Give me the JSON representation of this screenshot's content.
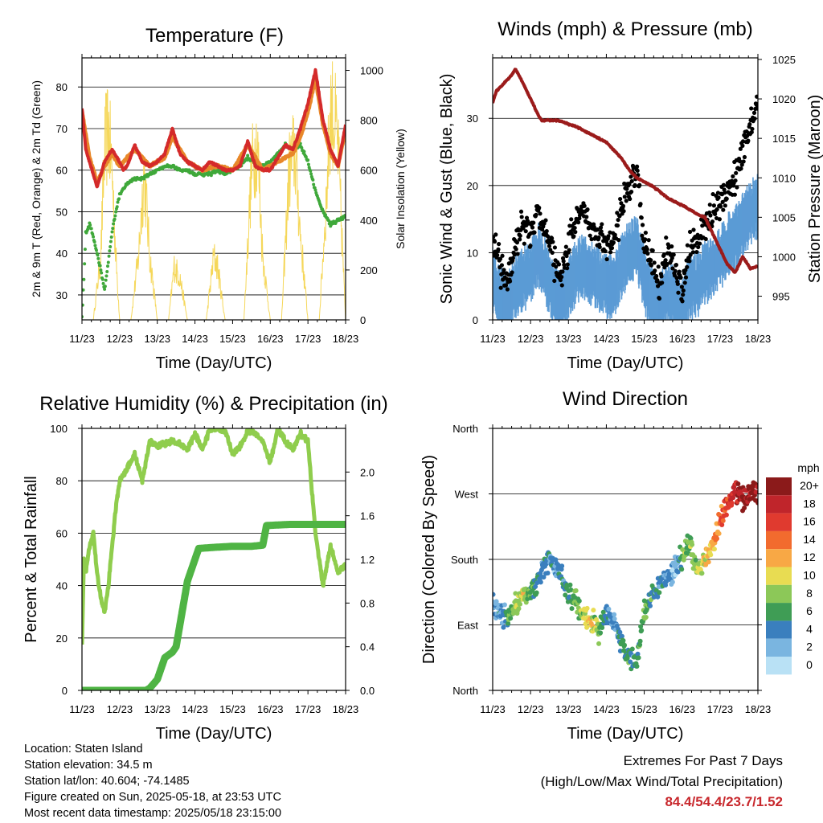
{
  "chart_data": [
    {
      "type": "line",
      "title": "Temperature (F)",
      "xlabel": "Time (Day/UTC)",
      "ylabel": "2m & 9m T (Red, Orange) & 2m Td (Green)",
      "y2label": "Solar Insolation (Yellow)",
      "x_ticks": [
        "11/23",
        "12/23",
        "13/23",
        "14/23",
        "15/23",
        "16/23",
        "17/23",
        "18/23"
      ],
      "ylim": [
        24,
        87
      ],
      "y_ticks": [
        30,
        40,
        50,
        60,
        70,
        80
      ],
      "y2lim": [
        0,
        1050
      ],
      "y2_ticks": [
        0,
        200,
        400,
        600,
        800,
        1000
      ],
      "grid": true,
      "series": [
        {
          "name": "2m T",
          "color": "#d42a2a",
          "x": [
            0,
            0.05,
            0.1,
            0.2,
            0.4,
            0.6,
            0.8,
            1.0,
            1.1,
            1.2,
            1.4,
            1.6,
            1.8,
            2.0,
            2.2,
            2.4,
            2.5,
            2.6,
            2.8,
            3.0,
            3.2,
            3.4,
            3.6,
            3.8,
            4.0,
            4.2,
            4.4,
            4.6,
            4.8,
            5.0,
            5.2,
            5.4,
            5.6,
            5.8,
            6.0,
            6.2,
            6.4,
            6.6,
            6.8,
            7.0
          ],
          "y": [
            75,
            70,
            65,
            62,
            56,
            62,
            65,
            62,
            60,
            61,
            66,
            62,
            61,
            62,
            64,
            70,
            67,
            64,
            62,
            61,
            60,
            62,
            61,
            60,
            60,
            61,
            67,
            61,
            60,
            60,
            63,
            66,
            65,
            70,
            76,
            84,
            72,
            65,
            61,
            71
          ]
        },
        {
          "name": "9m T",
          "color": "#e8882a",
          "x": [
            0,
            0.2,
            0.4,
            0.6,
            0.8,
            1.0,
            1.4,
            1.8,
            2.2,
            2.4,
            2.8,
            3.2,
            3.6,
            4.0,
            4.4,
            4.8,
            5.2,
            5.6,
            5.8,
            6.0,
            6.2,
            6.4,
            6.6,
            6.8,
            7.0
          ],
          "y": [
            74,
            63,
            57,
            61,
            64,
            61,
            65,
            61,
            63,
            68,
            62,
            60,
            61,
            60,
            66,
            60,
            62,
            64,
            68,
            74,
            82,
            71,
            64,
            61,
            70
          ]
        },
        {
          "name": "2m Td",
          "color": "#3fa83a",
          "x": [
            0,
            0.05,
            0.1,
            0.2,
            0.3,
            0.5,
            0.6,
            0.7,
            0.8,
            0.9,
            1.0,
            1.2,
            1.4,
            1.6,
            1.8,
            2.0,
            2.2,
            2.4,
            2.6,
            2.8,
            3.0,
            3.2,
            3.4,
            3.6,
            3.8,
            4.0,
            4.2,
            4.4,
            4.6,
            4.8,
            5.0,
            5.2,
            5.4,
            5.6,
            5.8,
            6.0,
            6.2,
            6.4,
            6.6,
            6.8,
            7.0
          ],
          "y": [
            25,
            34,
            45,
            47,
            44,
            36,
            31,
            38,
            45,
            50,
            54,
            57,
            58,
            58,
            59,
            60,
            61,
            61,
            60,
            60,
            59,
            59,
            59,
            60,
            59,
            60,
            61,
            63,
            62,
            61,
            62,
            64,
            66,
            65,
            66,
            62,
            55,
            50,
            47,
            48,
            49
          ]
        },
        {
          "name": "Solar Insolation",
          "color": "#f5d75a",
          "axis": "y2",
          "x": [
            0,
            0.3,
            0.5,
            0.6,
            0.7,
            0.8,
            0.9,
            1.0,
            1.3,
            1.5,
            1.65,
            1.8,
            2.0,
            2.3,
            2.45,
            2.6,
            2.8,
            3.0,
            3.3,
            3.5,
            3.6,
            3.8,
            4.0,
            4.3,
            4.5,
            4.65,
            4.8,
            5.0,
            5.3,
            5.5,
            5.65,
            5.8,
            6.0,
            6.3,
            6.5,
            6.6,
            6.7,
            6.8,
            7.0
          ],
          "y": [
            0,
            0,
            300,
            800,
            900,
            700,
            300,
            0,
            0,
            300,
            700,
            300,
            0,
            0,
            250,
            200,
            0,
            0,
            0,
            300,
            250,
            0,
            0,
            0,
            700,
            850,
            300,
            0,
            0,
            700,
            800,
            400,
            0,
            0,
            600,
            1000,
            950,
            800,
            0
          ]
        }
      ]
    },
    {
      "type": "scatter",
      "title": "Winds (mph) & Pressure (mb)",
      "xlabel": "Time (Day/UTC)",
      "ylabel": "Sonic Wind & Gust (Blue, Black)",
      "y2label": "Station Pressure (Maroon)",
      "x_ticks": [
        "11/23",
        "12/23",
        "13/23",
        "14/23",
        "15/23",
        "16/23",
        "17/23",
        "18/23"
      ],
      "ylim": [
        0,
        39
      ],
      "y_ticks": [
        0,
        10,
        20,
        30
      ],
      "y2lim": [
        992,
        1025.2
      ],
      "y2_ticks": [
        995,
        1000,
        1005,
        1010,
        1015,
        1020,
        1025
      ],
      "grid": true,
      "series": [
        {
          "name": "Sonic Wind",
          "color": "#5b9bd5",
          "x": [
            0,
            0.2,
            0.4,
            0.6,
            0.8,
            1.0,
            1.2,
            1.4,
            1.6,
            1.8,
            2.0,
            2.2,
            2.4,
            2.6,
            2.8,
            3.0,
            3.2,
            3.4,
            3.6,
            3.8,
            4.0,
            4.2,
            4.4,
            4.6,
            4.8,
            5.0,
            5.2,
            5.4,
            5.6,
            5.8,
            6.0,
            6.2,
            6.4,
            6.6,
            6.8,
            7.0
          ],
          "y": [
            7,
            4,
            3,
            6,
            7,
            8,
            11,
            8,
            5,
            3,
            6,
            8,
            9,
            8,
            7,
            6,
            6,
            9,
            11,
            12,
            7,
            4,
            3,
            5,
            4,
            2,
            6,
            6,
            8,
            9,
            10,
            12,
            13,
            15,
            17,
            18
          ]
        },
        {
          "name": "Gust",
          "color": "#000000",
          "x": [
            0,
            0.2,
            0.4,
            0.6,
            0.8,
            1.0,
            1.2,
            1.4,
            1.6,
            1.8,
            2.0,
            2.2,
            2.4,
            2.6,
            2.8,
            3.0,
            3.2,
            3.4,
            3.6,
            3.8,
            4.0,
            4.2,
            4.4,
            4.6,
            4.8,
            5.0,
            5.2,
            5.4,
            5.6,
            5.8,
            6.0,
            6.2,
            6.4,
            6.6,
            6.8,
            7.0
          ],
          "y": [
            12,
            8,
            6,
            11,
            14,
            13,
            16,
            13,
            9,
            6,
            11,
            15,
            16,
            14,
            12,
            11,
            12,
            17,
            20,
            22,
            12,
            8,
            6,
            10,
            8,
            5,
            11,
            12,
            14,
            16,
            17,
            19,
            21,
            25,
            29,
            32
          ]
        },
        {
          "name": "Station Pressure",
          "color": "#9b1b1b",
          "axis": "y2",
          "x": [
            0,
            0.1,
            0.3,
            0.5,
            0.6,
            0.8,
            1.0,
            1.2,
            1.3,
            1.5,
            1.8,
            2.0,
            2.2,
            2.4,
            2.6,
            2.8,
            3.0,
            3.2,
            3.4,
            3.6,
            3.8,
            4.0,
            4.2,
            4.4,
            4.6,
            4.8,
            5.0,
            5.2,
            5.4,
            5.6,
            5.8,
            6.0,
            6.2,
            6.4,
            6.6,
            6.8,
            7.0
          ],
          "y": [
            1019.5,
            1021,
            1022,
            1023,
            1023.8,
            1022,
            1020,
            1018,
            1017.2,
            1017.3,
            1017.2,
            1016.8,
            1016.5,
            1016,
            1015.5,
            1015,
            1014.5,
            1013.5,
            1012.5,
            1011,
            1010,
            1009.5,
            1009,
            1008.3,
            1007.5,
            1007,
            1006.5,
            1006,
            1005.4,
            1005,
            1003,
            1001,
            999,
            998,
            1000,
            998.5,
            998.8
          ]
        }
      ]
    },
    {
      "type": "line",
      "title": "Relative Humidity (%) & Precipitation (in)",
      "xlabel": "Time (Day/UTC)",
      "ylabel": "Percent & Total Rainfall",
      "x_ticks": [
        "11/23",
        "12/23",
        "13/23",
        "14/23",
        "15/23",
        "16/23",
        "17/23",
        "18/23"
      ],
      "ylim": [
        0,
        100
      ],
      "y_ticks": [
        0,
        20,
        40,
        60,
        80,
        100
      ],
      "y2lim": [
        0,
        2.4
      ],
      "y2_ticks": [
        "0.0",
        "0.4",
        "0.8",
        "1.2",
        "1.6",
        "2.0"
      ],
      "grid": true,
      "series": [
        {
          "name": "Relative Humidity",
          "color": "#8fcd4d",
          "x": [
            0,
            0.05,
            0.1,
            0.2,
            0.3,
            0.4,
            0.5,
            0.6,
            0.7,
            0.8,
            0.9,
            1.0,
            1.2,
            1.4,
            1.6,
            1.8,
            2.0,
            2.2,
            2.4,
            2.6,
            2.8,
            3.0,
            3.2,
            3.4,
            3.6,
            3.8,
            4.0,
            4.2,
            4.4,
            4.6,
            4.8,
            5.0,
            5.2,
            5.4,
            5.6,
            5.8,
            6.0,
            6.2,
            6.4,
            6.6,
            6.8,
            7.0
          ],
          "y": [
            18,
            50,
            45,
            55,
            60,
            45,
            35,
            30,
            40,
            55,
            70,
            80,
            85,
            90,
            80,
            95,
            93,
            94,
            95,
            94,
            92,
            98,
            92,
            100,
            100,
            99,
            90,
            93,
            99,
            98,
            95,
            87,
            100,
            95,
            92,
            98,
            95,
            60,
            40,
            55,
            45,
            48
          ]
        },
        {
          "name": "Total Rainfall",
          "color": "#4fb444",
          "axis": "y2",
          "x": [
            0,
            0.5,
            1.0,
            1.5,
            1.7,
            1.8,
            2.0,
            2.1,
            2.2,
            2.4,
            2.5,
            2.6,
            2.8,
            3.0,
            3.1,
            3.5,
            4.0,
            4.5,
            4.8,
            4.9,
            5.5,
            6.0,
            6.5,
            7.0
          ],
          "y": [
            0,
            0,
            0,
            0,
            0,
            0.02,
            0.1,
            0.2,
            0.3,
            0.35,
            0.4,
            0.6,
            1.0,
            1.2,
            1.3,
            1.31,
            1.32,
            1.32,
            1.33,
            1.51,
            1.52,
            1.52,
            1.52,
            1.52
          ]
        }
      ]
    },
    {
      "type": "scatter",
      "title": "Wind Direction",
      "xlabel": "Time (Day/UTC)",
      "ylabel": "Direction (Colored By Speed)",
      "x_ticks": [
        "11/23",
        "12/23",
        "13/23",
        "14/23",
        "15/23",
        "16/23",
        "17/23",
        "18/23"
      ],
      "y_ticks": [
        "North",
        "East",
        "South",
        "West",
        "North"
      ],
      "ylim": [
        0,
        360
      ],
      "grid": true,
      "colorbar": {
        "title": "mph",
        "labels": [
          "20+",
          "18",
          "16",
          "14",
          "12",
          "10",
          "8",
          "6",
          "4",
          "2",
          "0"
        ],
        "colors": [
          "#8b1a1a",
          "#c0252b",
          "#e03a2f",
          "#f26b2e",
          "#f8a845",
          "#e8dc52",
          "#8cc858",
          "#3f9d55",
          "#3a7fbe",
          "#7ab5e0",
          "#b9e1f5"
        ]
      },
      "series": [
        {
          "name": "Direction",
          "x": [
            0,
            0.2,
            0.4,
            0.6,
            0.8,
            1.0,
            1.2,
            1.4,
            1.6,
            1.8,
            2.0,
            2.2,
            2.4,
            2.6,
            2.8,
            3.0,
            3.2,
            3.4,
            3.6,
            3.8,
            4.0,
            4.2,
            4.4,
            4.6,
            4.8,
            5.0,
            5.2,
            5.4,
            5.6,
            5.8,
            6.0,
            6.2,
            6.4,
            6.6,
            6.8,
            7.0
          ],
          "y": [
            120,
            105,
            100,
            115,
            130,
            135,
            150,
            180,
            170,
            155,
            135,
            120,
            100,
            95,
            80,
            105,
            95,
            65,
            45,
            40,
            110,
            130,
            145,
            155,
            165,
            185,
            200,
            165,
            180,
            200,
            230,
            255,
            275,
            265,
            275,
            270
          ],
          "speed": [
            4,
            3,
            6,
            8,
            9,
            6,
            5,
            4,
            3,
            4,
            5,
            7,
            9,
            11,
            8,
            4,
            3,
            5,
            6,
            5,
            7,
            5,
            4,
            3,
            2,
            6,
            8,
            9,
            10,
            12,
            14,
            16,
            18,
            19,
            20,
            21
          ]
        }
      ]
    }
  ],
  "info": {
    "location": "Location: Staten Island",
    "elevation": "Station elevation: 34.5 m",
    "latlon": "Station lat/lon: 40.604; -74.1485",
    "created": "Figure created on Sun, 2025-05-18, at 23:53 UTC",
    "recent": "Most recent data timestamp: 2025/05/18 23:15:00"
  },
  "extremes": {
    "title": "Extremes For Past 7 Days",
    "subtitle": "(High/Low/Max Wind/Total Precipitation)",
    "values": "84.4/54.4/23.7/1.52"
  }
}
